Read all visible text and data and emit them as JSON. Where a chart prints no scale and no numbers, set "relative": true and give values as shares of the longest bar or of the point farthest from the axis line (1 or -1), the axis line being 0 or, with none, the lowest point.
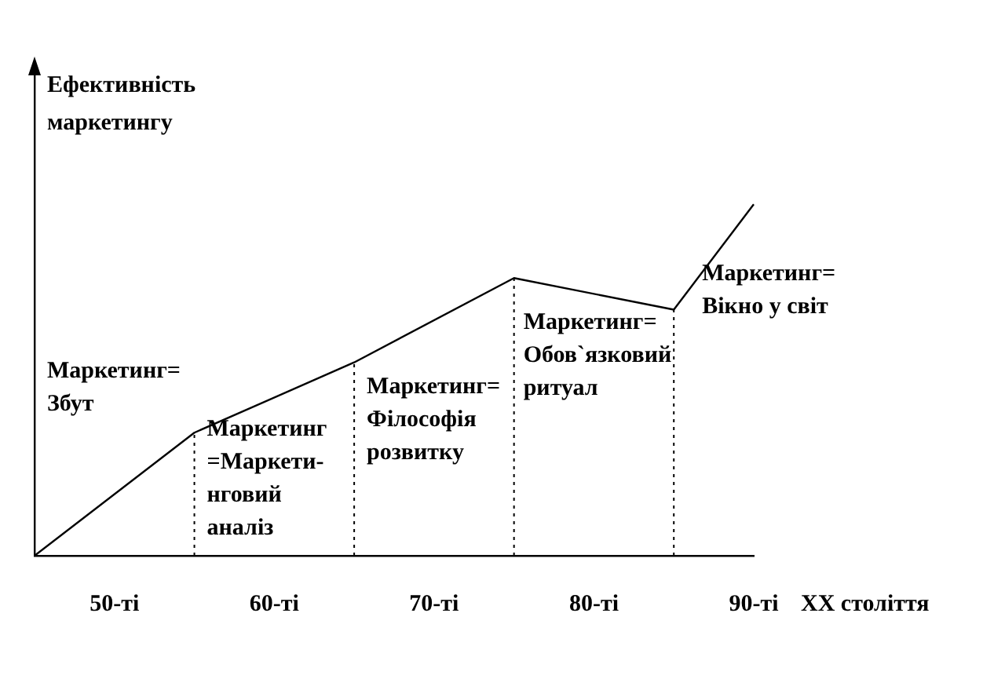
{
  "chart_data": {
    "type": "line",
    "relative": true,
    "ylabel": "Ефективність маркетингу",
    "xlabel": "XX століття",
    "categories": [
      null,
      "50-ті",
      null,
      "60-ті",
      null,
      "70-ті",
      null,
      "80-ті",
      null,
      "90-ті"
    ],
    "series": [
      {
        "color": "#000000",
        "values": [
          0,
          null,
          0.35,
          null,
          0.55,
          null,
          0.79,
          null,
          0.7,
          1
        ]
      }
    ],
    "annotations": [
      "Маркетинг=\nЗбут",
      "Маркетинг\n=Маркети-\nнговий\nаналіз",
      "Маркетинг=\nФілософія\nрозвитку",
      "Маркетинг=\nОбов`язковий\nритуал",
      "Маркетинг=\nВікно у світ"
    ],
    "grid": "x",
    "legend": false,
    "marker": "none",
    "line_style": "solid"
  }
}
